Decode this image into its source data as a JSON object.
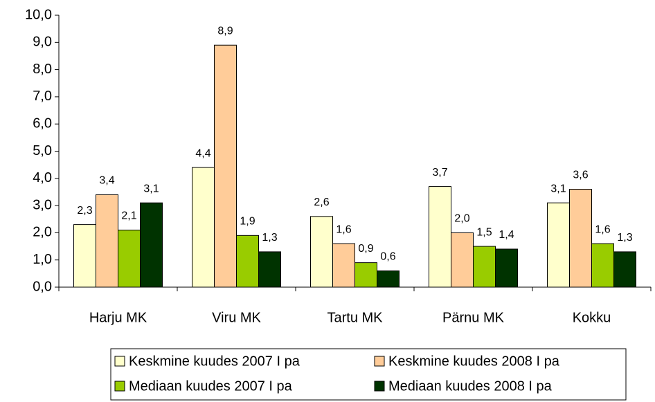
{
  "chart_data": {
    "type": "bar",
    "categories": [
      "Harju MK",
      "Viru MK",
      "Tartu MK",
      "Pärnu MK",
      "Kokku"
    ],
    "series": [
      {
        "name": "Keskmine kuudes 2007 I pa",
        "color": "#ffffcc",
        "values": [
          2.3,
          4.4,
          2.6,
          3.7,
          3.1
        ],
        "value_labels": [
          "2,3",
          "4,4",
          "2,6",
          "3,7",
          "3,1"
        ]
      },
      {
        "name": "Keskmine kuudes 2008 I pa",
        "color": "#ffcc99",
        "values": [
          3.4,
          8.9,
          1.6,
          2.0,
          3.6
        ],
        "value_labels": [
          "3,4",
          "8,9",
          "1,6",
          "2,0",
          "3,6"
        ]
      },
      {
        "name": "Mediaan kuudes 2007 I pa",
        "color": "#99cc00",
        "values": [
          2.1,
          1.9,
          0.9,
          1.5,
          1.6
        ],
        "value_labels": [
          "2,1",
          "1,9",
          "0,9",
          "1,5",
          "1,6"
        ]
      },
      {
        "name": "Mediaan kuudes 2008 I pa",
        "color": "#003300",
        "values": [
          3.1,
          1.3,
          0.6,
          1.4,
          1.3
        ],
        "value_labels": [
          "3,1",
          "1,3",
          "0,6",
          "1,4",
          "1,3"
        ]
      }
    ],
    "ylim": [
      0,
      10
    ],
    "yticks": [
      {
        "value": 0,
        "label": "0,0"
      },
      {
        "value": 1,
        "label": "1,0"
      },
      {
        "value": 2,
        "label": "2,0"
      },
      {
        "value": 3,
        "label": "3,0"
      },
      {
        "value": 4,
        "label": "4,0"
      },
      {
        "value": 5,
        "label": "5,0"
      },
      {
        "value": 6,
        "label": "6,0"
      },
      {
        "value": 7,
        "label": "7,0"
      },
      {
        "value": 8,
        "label": "8,0"
      },
      {
        "value": 9,
        "label": "9,0"
      },
      {
        "value": 10,
        "label": "10,0"
      }
    ],
    "grid": false,
    "legend": "bottom"
  }
}
